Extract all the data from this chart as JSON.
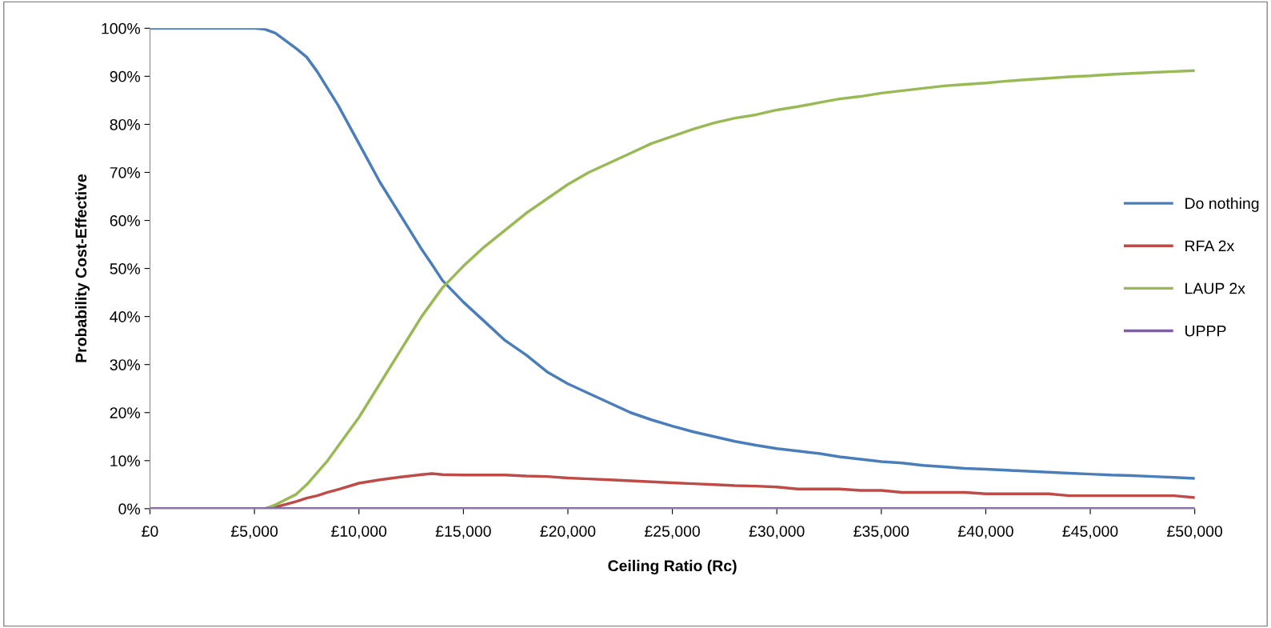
{
  "chart_data": {
    "type": "line",
    "xlabel": "Ceiling Ratio (Rc)",
    "ylabel": "Probability Cost-Effective",
    "x": [
      0,
      1000,
      2000,
      3000,
      4000,
      5000,
      5500,
      6000,
      7000,
      7500,
      8000,
      8500,
      9000,
      10000,
      11000,
      12000,
      13000,
      13500,
      14000,
      15000,
      16000,
      17000,
      18000,
      19000,
      20000,
      21000,
      22000,
      23000,
      24000,
      25000,
      26000,
      27000,
      28000,
      29000,
      30000,
      31000,
      32000,
      33000,
      34000,
      35000,
      36000,
      37000,
      38000,
      39000,
      40000,
      41000,
      42000,
      43000,
      44000,
      45000,
      46000,
      47000,
      48000,
      49000,
      50000
    ],
    "series": [
      {
        "name": "Do nothing",
        "color": "#4a7ebb",
        "values": [
          100,
          100,
          100,
          100,
          100,
          100,
          99.8,
          99,
          95.8,
          94,
          91,
          87.5,
          84,
          76,
          68,
          61,
          54,
          50.8,
          47.5,
          43,
          39,
          35,
          32,
          28.5,
          26,
          24,
          22,
          20,
          18.5,
          17.2,
          16,
          15,
          14,
          13.2,
          12.5,
          12,
          11.5,
          10.8,
          10.3,
          9.8,
          9.5,
          9,
          8.7,
          8.4,
          8.2,
          8,
          7.8,
          7.6,
          7.4,
          7.2,
          7,
          6.9,
          6.7,
          6.5,
          6.3
        ]
      },
      {
        "name": "RFA 2x",
        "color": "#be4b48",
        "values": [
          null,
          null,
          null,
          null,
          null,
          null,
          0,
          0.3,
          1.5,
          2.2,
          2.7,
          3.4,
          4,
          5.3,
          6,
          6.6,
          7.1,
          7.3,
          7.1,
          7,
          7,
          7,
          6.8,
          6.7,
          6.4,
          6.2,
          6,
          5.8,
          5.6,
          5.4,
          5.2,
          5,
          4.8,
          4.7,
          4.5,
          4.1,
          4.1,
          4.1,
          3.8,
          3.8,
          3.4,
          3.4,
          3.4,
          3.4,
          3.1,
          3.1,
          3.1,
          3.1,
          2.7,
          2.7,
          2.7,
          2.7,
          2.7,
          2.7,
          2.3
        ]
      },
      {
        "name": "LAUP 2x",
        "color": "#98b954",
        "values": [
          null,
          null,
          null,
          null,
          null,
          null,
          0,
          0.8,
          3,
          5,
          7.5,
          10,
          13,
          19,
          26,
          33,
          40,
          43,
          46,
          50.5,
          54.5,
          58,
          61.5,
          64.5,
          67.5,
          70,
          72,
          74,
          76,
          77.5,
          79,
          80.3,
          81.3,
          82,
          83,
          83.7,
          84.5,
          85.3,
          85.8,
          86.5,
          87,
          87.5,
          88,
          88.3,
          88.6,
          89,
          89.3,
          89.6,
          89.9,
          90.1,
          90.4,
          90.6,
          90.8,
          91,
          91.2
        ]
      },
      {
        "name": "UPPP",
        "color": "#7d60a0",
        "values": [
          0,
          0,
          0,
          0,
          0,
          0,
          0,
          0,
          0,
          0,
          0,
          0,
          0,
          0,
          0,
          0,
          0,
          0,
          0,
          0,
          0,
          0,
          0,
          0,
          0,
          0,
          0,
          0,
          0,
          0,
          0,
          0,
          0,
          0,
          0,
          0,
          0,
          0,
          0,
          0,
          0,
          0,
          0,
          0,
          0,
          0,
          0,
          0,
          0,
          0,
          0,
          0,
          0,
          0,
          0
        ]
      }
    ],
    "xlim": [
      0,
      50000
    ],
    "xticks": [
      {
        "value": 0,
        "label": "£0"
      },
      {
        "value": 5000,
        "label": "£5,000"
      },
      {
        "value": 10000,
        "label": "£10,000"
      },
      {
        "value": 15000,
        "label": "£15,000"
      },
      {
        "value": 20000,
        "label": "£20,000"
      },
      {
        "value": 25000,
        "label": "£25,000"
      },
      {
        "value": 30000,
        "label": "£30,000"
      },
      {
        "value": 35000,
        "label": "£35,000"
      },
      {
        "value": 40000,
        "label": "£40,000"
      },
      {
        "value": 45000,
        "label": "£45,000"
      },
      {
        "value": 50000,
        "label": "£50,000"
      }
    ],
    "ylim": [
      0,
      100
    ],
    "yticks": [
      {
        "value": 0,
        "label": "0%"
      },
      {
        "value": 10,
        "label": "10%"
      },
      {
        "value": 20,
        "label": "20%"
      },
      {
        "value": 30,
        "label": "30%"
      },
      {
        "value": 40,
        "label": "40%"
      },
      {
        "value": 50,
        "label": "50%"
      },
      {
        "value": 60,
        "label": "60%"
      },
      {
        "value": 70,
        "label": "70%"
      },
      {
        "value": 80,
        "label": "80%"
      },
      {
        "value": 90,
        "label": "90%"
      },
      {
        "value": 100,
        "label": "100%"
      }
    ],
    "grid": false,
    "legend": "right",
    "marker": "none",
    "line_style": "solid"
  }
}
